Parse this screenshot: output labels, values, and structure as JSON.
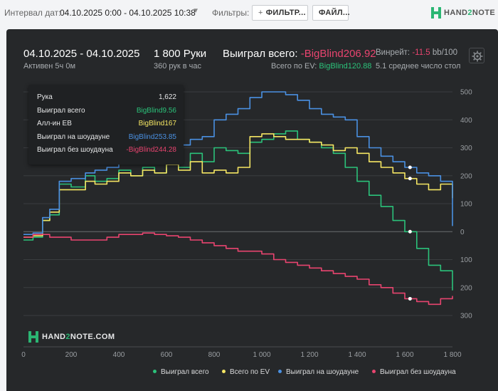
{
  "topbar": {
    "interval_label": "Интервал дат:",
    "interval_value": "04.10.2025 0:00 - 04.10.2025 10:38",
    "filters_label": "Фильтры:",
    "filter_button": "ФИЛЬТР...",
    "file_button": "ФАЙЛ...",
    "logo_text_a": "HAND",
    "logo_text_b": "2",
    "logo_text_c": "NOTE"
  },
  "summary": {
    "date_range": "04.10.2025 - 04.10.2025",
    "active": "Активен 5ч 0м",
    "hands": "1 800 Руки",
    "hands_rate": "360 рук в час",
    "won_label": "Выиграл всего:",
    "won_value": "-BigBlind206.92",
    "ev_label": "Всего по EV:",
    "ev_value": "BigBlind120.88",
    "winrate_label": "Винрейт:",
    "winrate_value": "-11.5",
    "winrate_unit": "bb/100",
    "avg_table": "5.1 среднее число стол"
  },
  "tooltip": {
    "rows": [
      {
        "label": "Рука",
        "value": "1,622",
        "color": "#e6e7e8"
      },
      {
        "label": "Выиграл всего",
        "value": "BigBlind9.56",
        "color": "#2bc27a"
      },
      {
        "label": "Алл-ин ЕВ",
        "value": "BigBlind167",
        "color": "#f5e663"
      },
      {
        "label": "Выиграл на шоудауне",
        "value": "BigBlind253.85",
        "color": "#4a90e2"
      },
      {
        "label": "Выиграл без шоудауна",
        "value": "-BigBlind244.28",
        "color": "#e8446f"
      }
    ]
  },
  "watermark": {
    "text_a": "HAND",
    "text_b": "2",
    "text_c": "NOTE.COM"
  },
  "colors": {
    "green": "#2bc27a",
    "yellow": "#f5e663",
    "blue": "#4a90e2",
    "pink": "#e8446f",
    "grid": "#3a3d40",
    "axis_text": "#9a9ea2"
  },
  "chart_data": {
    "type": "line",
    "x_ticks": [
      "0",
      "200",
      "400",
      "600",
      "800",
      "1 000",
      "1 200",
      "1 400",
      "1 600",
      "1 800"
    ],
    "xlim": [
      0,
      1800
    ],
    "y_ticks": [
      {
        "value": 500,
        "label": "500"
      },
      {
        "value": 400,
        "label": "400"
      },
      {
        "value": 300,
        "label": "300"
      },
      {
        "value": 200,
        "label": "200"
      },
      {
        "value": 100,
        "label": "100"
      },
      {
        "value": 0,
        "label": "0"
      },
      {
        "value": -100,
        "label": "100"
      },
      {
        "value": -200,
        "label": "200"
      },
      {
        "value": -300,
        "label": "300"
      }
    ],
    "ylim": [
      -300,
      500
    ],
    "grid": true,
    "series": [
      {
        "name": "Выиграл всего",
        "color": "#2bc27a",
        "x": [
          0,
          40,
          80,
          110,
          150,
          200,
          260,
          300,
          350,
          400,
          450,
          500,
          550,
          600,
          650,
          700,
          750,
          800,
          850,
          900,
          950,
          1000,
          1050,
          1100,
          1150,
          1200,
          1250,
          1300,
          1350,
          1400,
          1450,
          1500,
          1550,
          1600,
          1650,
          1700,
          1750,
          1800
        ],
        "y": [
          -30,
          -20,
          40,
          60,
          170,
          160,
          200,
          180,
          190,
          220,
          200,
          230,
          210,
          250,
          230,
          280,
          250,
          300,
          290,
          280,
          320,
          330,
          350,
          360,
          330,
          320,
          300,
          280,
          230,
          180,
          130,
          90,
          40,
          0,
          -60,
          -120,
          -140,
          -210
        ]
      },
      {
        "name": "Всего по EV",
        "color": "#f5e663",
        "x": [
          0,
          40,
          80,
          110,
          150,
          200,
          260,
          300,
          350,
          400,
          450,
          500,
          550,
          600,
          650,
          700,
          750,
          800,
          850,
          900,
          950,
          1000,
          1050,
          1100,
          1150,
          1200,
          1250,
          1300,
          1350,
          1400,
          1450,
          1500,
          1550,
          1600,
          1650,
          1700,
          1750,
          1800
        ],
        "y": [
          -20,
          -15,
          40,
          70,
          150,
          150,
          180,
          170,
          180,
          210,
          200,
          220,
          210,
          240,
          220,
          250,
          210,
          220,
          210,
          230,
          340,
          350,
          340,
          330,
          330,
          320,
          310,
          290,
          300,
          280,
          250,
          230,
          210,
          190,
          170,
          150,
          170,
          120
        ]
      },
      {
        "name": "Выиграл на шоудауне",
        "color": "#4a90e2",
        "x": [
          0,
          40,
          80,
          110,
          150,
          200,
          260,
          300,
          350,
          400,
          450,
          500,
          550,
          600,
          650,
          700,
          750,
          800,
          850,
          900,
          950,
          1000,
          1050,
          1100,
          1150,
          1200,
          1250,
          1300,
          1350,
          1400,
          1450,
          1500,
          1550,
          1600,
          1650,
          1700,
          1750,
          1800
        ],
        "y": [
          -10,
          -5,
          50,
          80,
          180,
          190,
          210,
          220,
          230,
          270,
          250,
          280,
          260,
          300,
          310,
          330,
          340,
          400,
          420,
          440,
          480,
          500,
          500,
          490,
          470,
          440,
          420,
          410,
          400,
          340,
          300,
          270,
          250,
          230,
          210,
          200,
          180,
          20
        ]
      },
      {
        "name": "Выиграл без шоудауна",
        "color": "#e8446f",
        "x": [
          0,
          40,
          80,
          110,
          150,
          200,
          260,
          300,
          350,
          400,
          450,
          500,
          550,
          600,
          650,
          700,
          750,
          800,
          850,
          900,
          950,
          1000,
          1050,
          1100,
          1150,
          1200,
          1250,
          1300,
          1350,
          1400,
          1450,
          1500,
          1550,
          1600,
          1650,
          1700,
          1750,
          1800
        ],
        "y": [
          -20,
          -10,
          -10,
          -20,
          -20,
          -30,
          -30,
          -30,
          -20,
          -10,
          -10,
          -5,
          -10,
          -15,
          -20,
          -30,
          -40,
          -50,
          -60,
          -70,
          -70,
          -80,
          -100,
          -110,
          -120,
          -130,
          -140,
          -150,
          -160,
          -170,
          -190,
          -200,
          -220,
          -240,
          -250,
          -260,
          -240,
          -230
        ]
      }
    ]
  }
}
